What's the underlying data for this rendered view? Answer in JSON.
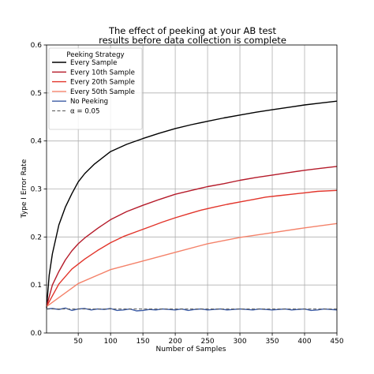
{
  "chart_data": {
    "type": "line",
    "title_lines": [
      "The effect of peeking at your AB test",
      "results before data collection is complete"
    ],
    "xlabel": "Number of Samples",
    "ylabel": "Type I Error Rate",
    "xlim": [
      1,
      450
    ],
    "ylim": [
      0,
      0.6
    ],
    "xticks": [
      50,
      100,
      150,
      200,
      250,
      300,
      350,
      400,
      450
    ],
    "yticks": [
      0.0,
      0.1,
      0.2,
      0.3,
      0.4,
      0.5,
      0.6
    ],
    "grid": true,
    "legend": {
      "title": "Peeking Strategy",
      "placement": "top-left"
    },
    "series": [
      {
        "name": "Every Sample",
        "color": "#000000",
        "style": "solid",
        "x": [
          1,
          5,
          10,
          20,
          30,
          40,
          50,
          60,
          75,
          100,
          125,
          150,
          175,
          200,
          225,
          250,
          275,
          300,
          325,
          350,
          375,
          400,
          425,
          450
        ],
        "y": [
          0.052,
          0.12,
          0.165,
          0.225,
          0.262,
          0.29,
          0.315,
          0.332,
          0.352,
          0.378,
          0.393,
          0.405,
          0.416,
          0.426,
          0.434,
          0.441,
          0.448,
          0.454,
          0.46,
          0.465,
          0.47,
          0.475,
          0.479,
          0.483
        ]
      },
      {
        "name": "Every 10th Sample",
        "color": "#b51b2a",
        "style": "solid",
        "x": [
          1,
          10,
          20,
          30,
          40,
          50,
          60,
          80,
          100,
          125,
          150,
          175,
          200,
          225,
          250,
          275,
          300,
          325,
          350,
          375,
          400,
          425,
          450
        ],
        "y": [
          0.055,
          0.1,
          0.128,
          0.152,
          0.171,
          0.186,
          0.198,
          0.218,
          0.236,
          0.253,
          0.266,
          0.278,
          0.289,
          0.297,
          0.305,
          0.311,
          0.318,
          0.324,
          0.329,
          0.334,
          0.339,
          0.343,
          0.347
        ]
      },
      {
        "name": "Every 20th Sample",
        "color": "#e2342a",
        "style": "solid",
        "x": [
          1,
          20,
          40,
          60,
          80,
          100,
          120,
          140,
          160,
          180,
          200,
          220,
          240,
          260,
          280,
          300,
          320,
          340,
          360,
          380,
          400,
          420,
          450
        ],
        "y": [
          0.055,
          0.102,
          0.133,
          0.154,
          0.172,
          0.188,
          0.201,
          0.211,
          0.221,
          0.231,
          0.24,
          0.248,
          0.256,
          0.262,
          0.268,
          0.273,
          0.278,
          0.283,
          0.286,
          0.289,
          0.292,
          0.295,
          0.297
        ]
      },
      {
        "name": "Every 50th Sample",
        "color": "#f4826a",
        "style": "solid",
        "x": [
          1,
          50,
          100,
          150,
          200,
          250,
          300,
          350,
          400,
          450
        ],
        "y": [
          0.055,
          0.103,
          0.132,
          0.15,
          0.168,
          0.186,
          0.199,
          0.209,
          0.219,
          0.228
        ]
      },
      {
        "name": "No Peeking",
        "color": "#3b5ba5",
        "style": "solid",
        "x": [
          1,
          10,
          20,
          30,
          40,
          50,
          60,
          70,
          80,
          90,
          100,
          110,
          120,
          130,
          140,
          150,
          160,
          170,
          180,
          190,
          200,
          210,
          220,
          230,
          240,
          250,
          260,
          270,
          280,
          290,
          300,
          310,
          320,
          330,
          340,
          350,
          360,
          370,
          380,
          390,
          400,
          410,
          420,
          430,
          440,
          450
        ],
        "y": [
          0.05,
          0.051,
          0.049,
          0.052,
          0.047,
          0.05,
          0.051,
          0.048,
          0.05,
          0.049,
          0.051,
          0.047,
          0.048,
          0.05,
          0.046,
          0.047,
          0.049,
          0.048,
          0.05,
          0.049,
          0.048,
          0.05,
          0.047,
          0.049,
          0.05,
          0.048,
          0.049,
          0.05,
          0.048,
          0.049,
          0.05,
          0.049,
          0.048,
          0.05,
          0.049,
          0.048,
          0.049,
          0.05,
          0.048,
          0.049,
          0.05,
          0.047,
          0.048,
          0.05,
          0.049,
          0.048
        ]
      },
      {
        "name": "α = 0.05",
        "color": "#555555",
        "style": "dashed",
        "x": [
          1,
          450
        ],
        "y": [
          0.05,
          0.05
        ]
      }
    ]
  }
}
